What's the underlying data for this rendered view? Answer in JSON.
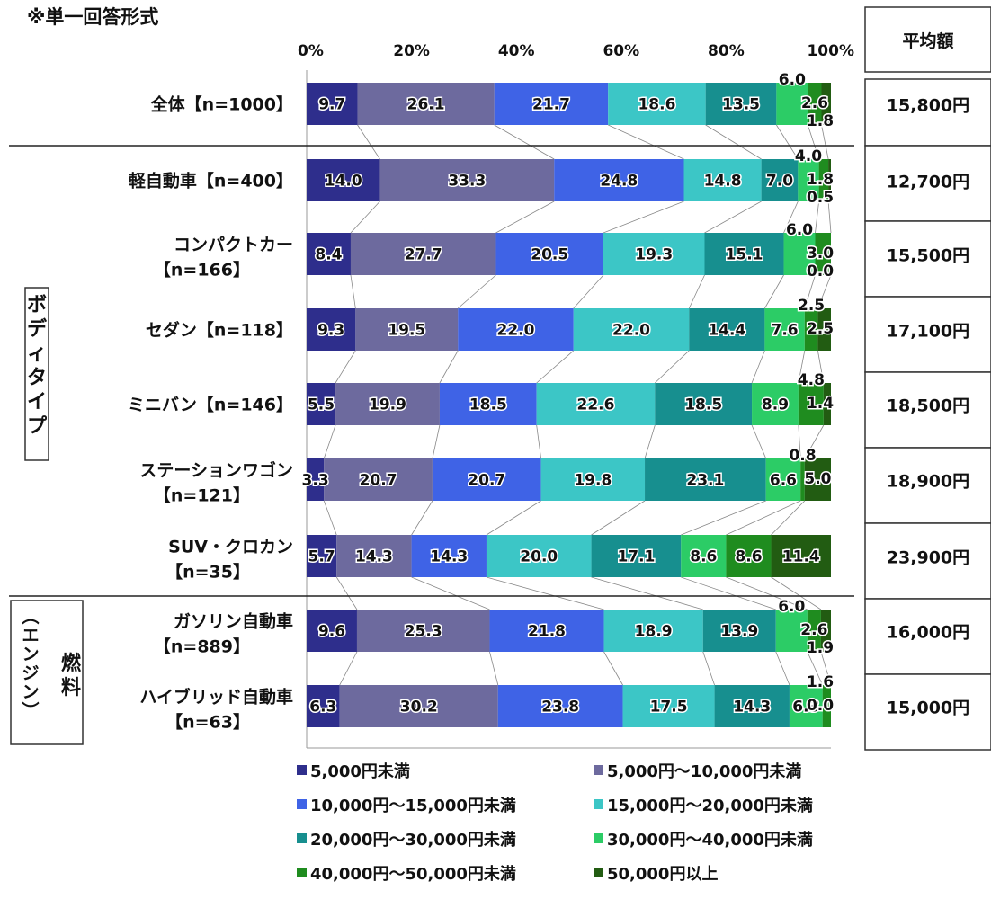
{
  "note": "※単一回答形式",
  "avg_header": "平均額",
  "groups": [
    {
      "label": "ボディタイプ"
    },
    {
      "label": "燃料（エンジン）"
    }
  ],
  "chart_data": {
    "type": "bar",
    "orientation": "horizontal",
    "stacked": "percent",
    "x_ticks": [
      "0%",
      "20%",
      "40%",
      "60%",
      "80%",
      "100%"
    ],
    "xlim": [
      0,
      100
    ],
    "legend_position": "bottom",
    "categories": [
      {
        "name": "全体",
        "n": "【n=1000】",
        "label": "全体【n=1000】",
        "avg": "15,800円"
      },
      {
        "name": "軽自動車",
        "n": "【n=400】",
        "label": "軽自動車【n=400】",
        "avg": "12,700円"
      },
      {
        "name": "コンパクトカー",
        "n": "【n=166】",
        "label": "コンパクトカー",
        "label2": "【n=166】",
        "avg": "15,500円"
      },
      {
        "name": "セダン",
        "n": "【n=118】",
        "label": "セダン【n=118】",
        "avg": "17,100円"
      },
      {
        "name": "ミニバン",
        "n": "【n=146】",
        "label": "ミニバン【n=146】",
        "avg": "18,500円"
      },
      {
        "name": "ステーションワゴン",
        "n": "【n=121】",
        "label": "ステーションワゴン",
        "label2": "【n=121】",
        "avg": "18,900円"
      },
      {
        "name": "SUV・クロカン",
        "n": "【n=35】",
        "label": "SUV・クロカン",
        "label2": "【n=35】",
        "avg": "23,900円"
      },
      {
        "name": "ガソリン自動車",
        "n": "【n=889】",
        "label": "ガソリン自動車",
        "label2": "【n=889】",
        "avg": "16,000円"
      },
      {
        "name": "ハイブリッド自動車",
        "n": "【n=63】",
        "label": "ハイブリッド自動車",
        "label2": "【n=63】",
        "avg": "15,000円"
      }
    ],
    "series": [
      {
        "name": "5,000円未満",
        "color": "#2e2e8c",
        "values": [
          9.7,
          14.0,
          8.4,
          9.3,
          5.5,
          3.3,
          5.7,
          9.6,
          6.3
        ]
      },
      {
        "name": "5,000円～10,000円未満",
        "color": "#6d6a9e",
        "values": [
          26.1,
          33.3,
          27.7,
          19.5,
          19.9,
          20.7,
          14.3,
          25.3,
          30.2
        ]
      },
      {
        "name": "10,000円～15,000円未満",
        "color": "#3f63e6",
        "values": [
          21.7,
          24.8,
          20.5,
          22.0,
          18.5,
          20.7,
          14.3,
          21.8,
          23.8
        ]
      },
      {
        "name": "15,000円～20,000円未満",
        "color": "#3cc6c6",
        "values": [
          18.6,
          14.8,
          19.3,
          22.0,
          22.6,
          19.8,
          20.0,
          18.9,
          17.5
        ]
      },
      {
        "name": "20,000円～30,000円未満",
        "color": "#178f8f",
        "values": [
          13.5,
          7.0,
          15.1,
          14.4,
          18.5,
          23.1,
          17.1,
          13.9,
          14.3
        ]
      },
      {
        "name": "30,000円～40,000円未満",
        "color": "#2ccc66",
        "values": [
          6.0,
          4.0,
          6.0,
          7.6,
          8.9,
          6.6,
          8.6,
          6.0,
          6.3
        ]
      },
      {
        "name": "40,000円～50,000円未満",
        "color": "#1f8c1f",
        "values": [
          2.6,
          1.8,
          3.0,
          2.5,
          4.8,
          0.8,
          8.6,
          2.6,
          1.6
        ]
      },
      {
        "name": "50,000円以上",
        "color": "#225c12",
        "values": [
          1.8,
          0.5,
          0.0,
          2.5,
          1.4,
          5.0,
          11.4,
          1.9,
          0.0
        ]
      }
    ]
  }
}
